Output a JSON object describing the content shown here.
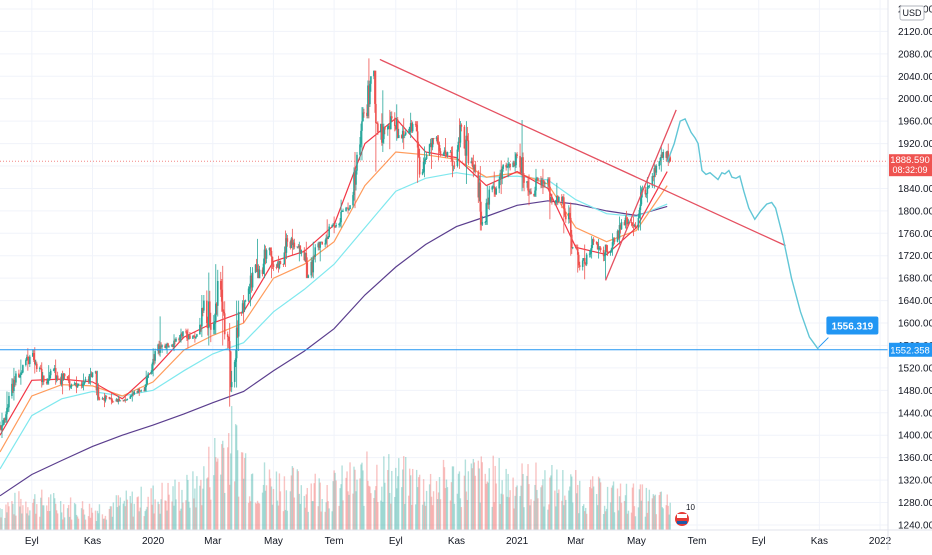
{
  "chart_data": {
    "type": "candlestick",
    "currency": "USD",
    "y_ticks": [
      "2160.000",
      "2120.000",
      "2080.000",
      "2040.000",
      "2000.000",
      "1960.000",
      "1920.000",
      "1880.000",
      "1840.000",
      "1800.000",
      "1760.000",
      "1720.000",
      "1680.000",
      "1640.000",
      "1600.000",
      "1560.000",
      "1520.000",
      "1480.000",
      "1440.000",
      "1400.000",
      "1360.000",
      "1320.000",
      "1280.000",
      "1240.000"
    ],
    "y_tick_values": [
      2160,
      2120,
      2080,
      2040,
      2000,
      1960,
      1920,
      1880,
      1840,
      1800,
      1760,
      1720,
      1680,
      1640,
      1600,
      1560,
      1520,
      1480,
      1440,
      1400,
      1360,
      1320,
      1280,
      1240
    ],
    "ylim": [
      1231,
      2176
    ],
    "x_ticks": [
      "Eyl",
      "Kas",
      "2020",
      "Mar",
      "May",
      "Tem",
      "Eyl",
      "Kas",
      "2021",
      "Mar",
      "May",
      "Tem",
      "Eyl",
      "Kas",
      "2022"
    ],
    "x_tick_dates": [
      "2019-09-01",
      "2019-11-01",
      "2020-01-01",
      "2020-03-01",
      "2020-05-01",
      "2020-07-01",
      "2020-09-01",
      "2020-11-01",
      "2021-01-01",
      "2021-03-01",
      "2021-05-01",
      "2021-07-01",
      "2021-09-01",
      "2021-11-01",
      "2022-01-01"
    ],
    "xlim": [
      "2019-07-31",
      "2022-01-09"
    ],
    "last_price": {
      "value": 1888.59,
      "label": "1888.590",
      "countdown": "08:32:09",
      "color": "#ef5350"
    },
    "horizontal_level": {
      "value": 1552.358,
      "label": "1552.358",
      "color": "#2196f3"
    },
    "target_callout": {
      "value": 1556.319,
      "label": "1556.319",
      "date": "2021-10-31",
      "color": "#2196f3"
    },
    "series_colors": {
      "up": "#26a69a",
      "down": "#ef5350",
      "ema_fast": "#f23645",
      "ema_mid": "#ff9b5b",
      "ema_slow": "#7fe8ee",
      "ema_long": "#5b3e8e"
    },
    "lines": [
      {
        "name": "downtrend",
        "color": "#e55060",
        "points": [
          [
            "2020-08-16",
            2070
          ],
          [
            "2021-09-28",
            1738
          ]
        ]
      },
      {
        "name": "uptrend",
        "color": "#e55060",
        "points": [
          [
            "2021-03-31",
            1676
          ],
          [
            "2021-06-10",
            1980
          ]
        ]
      }
    ],
    "projection": {
      "color": "#61c6d6",
      "points": [
        [
          "2021-06-01",
          1887
        ],
        [
          "2021-06-08",
          1920
        ],
        [
          "2021-06-14",
          1960
        ],
        [
          "2021-06-19",
          1964
        ],
        [
          "2021-06-25",
          1940
        ],
        [
          "2021-06-29",
          1930
        ],
        [
          "2021-07-02",
          1920
        ],
        [
          "2021-07-06",
          1872
        ],
        [
          "2021-07-10",
          1865
        ],
        [
          "2021-07-14",
          1868
        ],
        [
          "2021-07-18",
          1862
        ],
        [
          "2021-07-22",
          1856
        ],
        [
          "2021-07-26",
          1868
        ],
        [
          "2021-07-29",
          1866
        ],
        [
          "2021-08-02",
          1872
        ],
        [
          "2021-08-05",
          1860
        ],
        [
          "2021-08-09",
          1858
        ],
        [
          "2021-08-13",
          1862
        ],
        [
          "2021-08-17",
          1835
        ],
        [
          "2021-08-22",
          1805
        ],
        [
          "2021-08-28",
          1785
        ],
        [
          "2021-09-03",
          1800
        ],
        [
          "2021-09-09",
          1812
        ],
        [
          "2021-09-14",
          1815
        ],
        [
          "2021-09-18",
          1805
        ],
        [
          "2021-09-25",
          1756
        ],
        [
          "2021-10-04",
          1680
        ],
        [
          "2021-10-13",
          1620
        ],
        [
          "2021-10-22",
          1575
        ],
        [
          "2021-10-31",
          1553
        ]
      ]
    },
    "candles_ohlc": [
      [
        "2019-07-31",
        1412,
        1440,
        1395,
        1430
      ],
      [
        "2019-08-05",
        1430,
        1478,
        1422,
        1470
      ],
      [
        "2019-08-12",
        1470,
        1520,
        1462,
        1510
      ],
      [
        "2019-08-19",
        1510,
        1535,
        1490,
        1525
      ],
      [
        "2019-08-26",
        1525,
        1555,
        1515,
        1540
      ],
      [
        "2019-09-02",
        1540,
        1557,
        1510,
        1518
      ],
      [
        "2019-09-09",
        1518,
        1530,
        1485,
        1495
      ],
      [
        "2019-09-16",
        1495,
        1525,
        1490,
        1515
      ],
      [
        "2019-09-23",
        1515,
        1535,
        1490,
        1500
      ],
      [
        "2019-09-30",
        1500,
        1515,
        1473,
        1505
      ],
      [
        "2019-10-07",
        1505,
        1520,
        1480,
        1490
      ],
      [
        "2019-10-14",
        1490,
        1505,
        1475,
        1492
      ],
      [
        "2019-10-21",
        1492,
        1510,
        1480,
        1500
      ],
      [
        "2019-10-28",
        1500,
        1520,
        1490,
        1512
      ],
      [
        "2019-11-04",
        1512,
        1515,
        1462,
        1465
      ],
      [
        "2019-11-11",
        1465,
        1475,
        1450,
        1468
      ],
      [
        "2019-11-18",
        1468,
        1475,
        1455,
        1460
      ],
      [
        "2019-11-25",
        1460,
        1470,
        1455,
        1462
      ],
      [
        "2019-12-02",
        1462,
        1470,
        1458,
        1465
      ],
      [
        "2019-12-09",
        1465,
        1480,
        1460,
        1478
      ],
      [
        "2019-12-16",
        1478,
        1485,
        1470,
        1480
      ],
      [
        "2019-12-23",
        1480,
        1515,
        1478,
        1510
      ],
      [
        "2019-12-30",
        1510,
        1555,
        1505,
        1550
      ],
      [
        "2020-01-06",
        1550,
        1612,
        1540,
        1560
      ],
      [
        "2020-01-13",
        1560,
        1565,
        1545,
        1558
      ],
      [
        "2020-01-20",
        1558,
        1580,
        1550,
        1572
      ],
      [
        "2020-01-27",
        1572,
        1590,
        1565,
        1585
      ],
      [
        "2020-02-03",
        1585,
        1590,
        1555,
        1572
      ],
      [
        "2020-02-10",
        1572,
        1585,
        1565,
        1580
      ],
      [
        "2020-02-17",
        1580,
        1650,
        1575,
        1640
      ],
      [
        "2020-02-24",
        1640,
        1690,
        1560,
        1588
      ],
      [
        "2020-03-02",
        1588,
        1705,
        1580,
        1675
      ],
      [
        "2020-03-09",
        1675,
        1702,
        1560,
        1580
      ],
      [
        "2020-03-16",
        1580,
        1600,
        1451,
        1495
      ],
      [
        "2020-03-23",
        1495,
        1640,
        1485,
        1620
      ],
      [
        "2020-03-30",
        1620,
        1650,
        1600,
        1640
      ],
      [
        "2020-04-06",
        1640,
        1700,
        1630,
        1690
      ],
      [
        "2020-04-13",
        1690,
        1750,
        1680,
        1695
      ],
      [
        "2020-04-20",
        1695,
        1740,
        1680,
        1730
      ],
      [
        "2020-04-27",
        1730,
        1735,
        1680,
        1700
      ],
      [
        "2020-05-04",
        1700,
        1720,
        1690,
        1705
      ],
      [
        "2020-05-11",
        1705,
        1765,
        1700,
        1745
      ],
      [
        "2020-05-18",
        1745,
        1768,
        1720,
        1735
      ],
      [
        "2020-05-25",
        1735,
        1745,
        1710,
        1730
      ],
      [
        "2020-06-01",
        1730,
        1745,
        1680,
        1685
      ],
      [
        "2020-06-08",
        1685,
        1745,
        1680,
        1735
      ],
      [
        "2020-06-15",
        1735,
        1745,
        1710,
        1740
      ],
      [
        "2020-06-22",
        1740,
        1785,
        1735,
        1772
      ],
      [
        "2020-06-29",
        1772,
        1790,
        1760,
        1775
      ],
      [
        "2020-07-06",
        1775,
        1820,
        1770,
        1800
      ],
      [
        "2020-07-13",
        1800,
        1815,
        1795,
        1810
      ],
      [
        "2020-07-20",
        1810,
        1905,
        1805,
        1900
      ],
      [
        "2020-07-27",
        1900,
        1985,
        1890,
        1975
      ],
      [
        "2020-08-03",
        1975,
        2072,
        1965,
        2040
      ],
      [
        "2020-08-10",
        2040,
        2050,
        1870,
        1940
      ],
      [
        "2020-08-17",
        1940,
        2015,
        1905,
        1945
      ],
      [
        "2020-08-24",
        1945,
        1980,
        1910,
        1965
      ],
      [
        "2020-08-31",
        1965,
        1990,
        1925,
        1935
      ],
      [
        "2020-09-07",
        1935,
        1965,
        1910,
        1940
      ],
      [
        "2020-09-14",
        1940,
        1975,
        1930,
        1955
      ],
      [
        "2020-09-21",
        1955,
        1960,
        1850,
        1865
      ],
      [
        "2020-09-28",
        1865,
        1915,
        1860,
        1900
      ],
      [
        "2020-10-05",
        1900,
        1930,
        1875,
        1928
      ],
      [
        "2020-10-12",
        1928,
        1935,
        1890,
        1900
      ],
      [
        "2020-10-19",
        1900,
        1930,
        1895,
        1905
      ],
      [
        "2020-10-26",
        1905,
        1915,
        1860,
        1880
      ],
      [
        "2020-11-02",
        1880,
        1965,
        1875,
        1950
      ],
      [
        "2020-11-09",
        1950,
        1960,
        1848,
        1885
      ],
      [
        "2020-11-16",
        1885,
        1900,
        1860,
        1870
      ],
      [
        "2020-11-23",
        1870,
        1880,
        1765,
        1780
      ],
      [
        "2020-11-30",
        1780,
        1845,
        1775,
        1838
      ],
      [
        "2020-12-07",
        1838,
        1870,
        1825,
        1840
      ],
      [
        "2020-12-14",
        1840,
        1890,
        1830,
        1882
      ],
      [
        "2020-12-21",
        1882,
        1895,
        1860,
        1878
      ],
      [
        "2020-12-28",
        1878,
        1905,
        1870,
        1898
      ],
      [
        "2021-01-04",
        1898,
        1962,
        1835,
        1850
      ],
      [
        "2021-01-11",
        1850,
        1865,
        1810,
        1830
      ],
      [
        "2021-01-18",
        1830,
        1875,
        1825,
        1855
      ],
      [
        "2021-01-25",
        1855,
        1875,
        1830,
        1850
      ],
      [
        "2021-02-01",
        1850,
        1860,
        1785,
        1815
      ],
      [
        "2021-02-08",
        1815,
        1850,
        1810,
        1825
      ],
      [
        "2021-02-15",
        1825,
        1830,
        1760,
        1785
      ],
      [
        "2021-02-22",
        1785,
        1815,
        1720,
        1735
      ],
      [
        "2021-03-01",
        1735,
        1740,
        1690,
        1700
      ],
      [
        "2021-03-08",
        1700,
        1740,
        1678,
        1722
      ],
      [
        "2021-03-15",
        1722,
        1755,
        1715,
        1745
      ],
      [
        "2021-03-22",
        1745,
        1750,
        1715,
        1730
      ],
      [
        "2021-03-29",
        1730,
        1740,
        1678,
        1725
      ],
      [
        "2021-04-05",
        1725,
        1760,
        1720,
        1745
      ],
      [
        "2021-04-12",
        1745,
        1790,
        1740,
        1780
      ],
      [
        "2021-04-19",
        1780,
        1800,
        1765,
        1780
      ],
      [
        "2021-04-26",
        1780,
        1790,
        1755,
        1770
      ],
      [
        "2021-05-03",
        1770,
        1845,
        1765,
        1838
      ],
      [
        "2021-05-10",
        1838,
        1860,
        1815,
        1845
      ],
      [
        "2021-05-17",
        1845,
        1890,
        1840,
        1880
      ],
      [
        "2021-05-24",
        1880,
        1915,
        1870,
        1905
      ],
      [
        "2021-05-31",
        1905,
        1920,
        1880,
        1888
      ]
    ],
    "ema_fast_points": [
      [
        "2019-07-31",
        1400
      ],
      [
        "2019-09-01",
        1498
      ],
      [
        "2019-10-01",
        1500
      ],
      [
        "2019-11-01",
        1495
      ],
      [
        "2019-12-01",
        1465
      ],
      [
        "2020-01-01",
        1515
      ],
      [
        "2020-02-01",
        1575
      ],
      [
        "2020-03-01",
        1600
      ],
      [
        "2020-04-01",
        1620
      ],
      [
        "2020-05-01",
        1710
      ],
      [
        "2020-06-01",
        1728
      ],
      [
        "2020-07-01",
        1775
      ],
      [
        "2020-08-01",
        1920
      ],
      [
        "2020-09-01",
        1965
      ],
      [
        "2020-10-01",
        1905
      ],
      [
        "2020-11-01",
        1895
      ],
      [
        "2020-12-01",
        1845
      ],
      [
        "2021-01-01",
        1870
      ],
      [
        "2021-02-01",
        1840
      ],
      [
        "2021-03-01",
        1735
      ],
      [
        "2021-04-01",
        1722
      ],
      [
        "2021-05-01",
        1770
      ],
      [
        "2021-06-01",
        1870
      ]
    ],
    "ema_mid_points": [
      [
        "2019-07-31",
        1370
      ],
      [
        "2019-09-01",
        1470
      ],
      [
        "2019-10-01",
        1490
      ],
      [
        "2019-11-01",
        1488
      ],
      [
        "2019-12-01",
        1470
      ],
      [
        "2020-01-01",
        1495
      ],
      [
        "2020-02-01",
        1552
      ],
      [
        "2020-03-01",
        1578
      ],
      [
        "2020-04-01",
        1600
      ],
      [
        "2020-05-01",
        1680
      ],
      [
        "2020-06-01",
        1705
      ],
      [
        "2020-07-01",
        1745
      ],
      [
        "2020-08-01",
        1845
      ],
      [
        "2020-09-01",
        1905
      ],
      [
        "2020-10-01",
        1900
      ],
      [
        "2020-11-01",
        1892
      ],
      [
        "2020-12-01",
        1860
      ],
      [
        "2021-01-01",
        1868
      ],
      [
        "2021-02-01",
        1848
      ],
      [
        "2021-03-01",
        1770
      ],
      [
        "2021-04-01",
        1745
      ],
      [
        "2021-05-01",
        1765
      ],
      [
        "2021-06-01",
        1845
      ]
    ],
    "ema_slow_points": [
      [
        "2019-07-31",
        1340
      ],
      [
        "2019-09-01",
        1435
      ],
      [
        "2019-10-01",
        1465
      ],
      [
        "2019-11-01",
        1478
      ],
      [
        "2019-12-01",
        1470
      ],
      [
        "2020-01-01",
        1480
      ],
      [
        "2020-02-01",
        1515
      ],
      [
        "2020-03-01",
        1545
      ],
      [
        "2020-04-01",
        1565
      ],
      [
        "2020-05-01",
        1620
      ],
      [
        "2020-06-01",
        1660
      ],
      [
        "2020-07-01",
        1705
      ],
      [
        "2020-08-01",
        1770
      ],
      [
        "2020-09-01",
        1835
      ],
      [
        "2020-10-01",
        1858
      ],
      [
        "2020-11-01",
        1868
      ],
      [
        "2020-12-01",
        1860
      ],
      [
        "2021-01-01",
        1862
      ],
      [
        "2021-02-01",
        1855
      ],
      [
        "2021-03-01",
        1820
      ],
      [
        "2021-04-01",
        1795
      ],
      [
        "2021-05-01",
        1790
      ],
      [
        "2021-06-01",
        1812
      ]
    ],
    "ema_long_points": [
      [
        "2019-07-31",
        1292
      ],
      [
        "2019-09-01",
        1330
      ],
      [
        "2019-10-01",
        1355
      ],
      [
        "2019-11-01",
        1380
      ],
      [
        "2019-12-01",
        1400
      ],
      [
        "2020-01-01",
        1418
      ],
      [
        "2020-02-01",
        1438
      ],
      [
        "2020-03-01",
        1458
      ],
      [
        "2020-04-01",
        1478
      ],
      [
        "2020-05-01",
        1515
      ],
      [
        "2020-06-01",
        1550
      ],
      [
        "2020-07-01",
        1590
      ],
      [
        "2020-08-01",
        1650
      ],
      [
        "2020-09-01",
        1700
      ],
      [
        "2020-10-01",
        1740
      ],
      [
        "2020-11-01",
        1772
      ],
      [
        "2020-12-01",
        1790
      ],
      [
        "2021-01-01",
        1810
      ],
      [
        "2021-02-01",
        1818
      ],
      [
        "2021-03-01",
        1812
      ],
      [
        "2021-04-01",
        1800
      ],
      [
        "2021-05-01",
        1792
      ],
      [
        "2021-06-01",
        1808
      ]
    ],
    "volume_profile": [
      [
        "2019-07-31",
        25
      ],
      [
        "2019-09-01",
        32
      ],
      [
        "2019-11-01",
        22
      ],
      [
        "2020-01-01",
        35
      ],
      [
        "2020-02-15",
        45
      ],
      [
        "2020-03-15",
        100
      ],
      [
        "2020-04-15",
        55
      ],
      [
        "2020-05-15",
        48
      ],
      [
        "2020-07-01",
        45
      ],
      [
        "2020-08-15",
        62
      ],
      [
        "2020-10-01",
        48
      ],
      [
        "2020-11-15",
        58
      ],
      [
        "2021-01-01",
        52
      ],
      [
        "2021-02-15",
        48
      ],
      [
        "2021-03-15",
        40
      ],
      [
        "2021-05-01",
        35
      ],
      [
        "2021-06-01",
        28
      ]
    ],
    "volume_scale_note": "",
    "grid": true
  },
  "ui": {
    "currency_label": "USD",
    "flag_badge_text": "10"
  }
}
